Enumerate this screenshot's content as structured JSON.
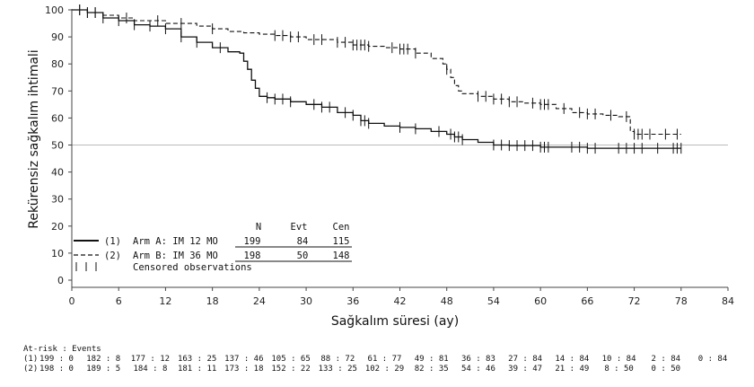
{
  "chart_data": {
    "type": "line",
    "subtype": "kaplan-meier",
    "xlabel": "Sağkalım süresi (ay)",
    "ylabel": "Rekürensiz sağkalım ihtimali",
    "xlim": [
      0,
      84
    ],
    "ylim": [
      0,
      100
    ],
    "xticks": [
      0,
      6,
      12,
      18,
      24,
      30,
      36,
      42,
      48,
      54,
      60,
      66,
      72,
      78,
      84
    ],
    "yticks": [
      0,
      10,
      20,
      30,
      40,
      50,
      60,
      70,
      80,
      90,
      100
    ],
    "reference_line_y": 50,
    "series": [
      {
        "name": "Arm A: IM 12 MO",
        "legend_id": "(1)",
        "style": "solid",
        "n": "199",
        "evt": "84",
        "cen": "115",
        "x": [
          0,
          2,
          4,
          6,
          8,
          10,
          12,
          14,
          16,
          18,
          20,
          21.5,
          22,
          22.5,
          23,
          23.5,
          24,
          25,
          26,
          28,
          30,
          32,
          34,
          36,
          37,
          38,
          40,
          42,
          44,
          46,
          48,
          49,
          50,
          52,
          54,
          56,
          60,
          66,
          72,
          78
        ],
        "y": [
          100,
          99,
          97,
          96,
          94.5,
          94,
          93,
          90,
          88,
          86,
          84.5,
          84,
          81,
          78,
          74,
          71,
          68,
          67.5,
          67,
          66,
          65,
          64,
          62,
          61,
          59,
          58,
          57,
          56.5,
          56,
          55,
          54,
          53,
          52,
          51,
          50,
          49.8,
          49.2,
          48.8,
          48.8,
          48.8
        ],
        "censor_x": [
          1,
          2,
          3,
          4,
          6,
          8,
          10,
          12,
          14,
          16,
          19,
          25,
          26,
          27,
          28,
          31,
          32,
          33,
          35,
          36,
          37,
          37.5,
          38,
          42,
          44,
          47,
          48.5,
          49,
          49.5,
          50,
          54,
          55,
          56,
          57,
          58,
          59,
          60,
          60.5,
          61,
          64,
          65,
          66,
          67,
          70,
          71,
          72,
          73,
          75,
          77,
          77.5,
          78
        ]
      },
      {
        "name": "Arm B: IM 36 MO",
        "legend_id": "(2)",
        "style": "dashed",
        "n": "198",
        "evt": "50",
        "cen": "148",
        "x": [
          0,
          2,
          4,
          6,
          8,
          10,
          12,
          14,
          16,
          18,
          20,
          22,
          24,
          26,
          28,
          30,
          34,
          36,
          38,
          40,
          42,
          44,
          46,
          47.5,
          48,
          48.5,
          49,
          49.5,
          50,
          52,
          54,
          56,
          58,
          60,
          62,
          64,
          66,
          68,
          70,
          71.5,
          72,
          74,
          78
        ],
        "y": [
          100,
          99,
          98,
          97,
          96,
          96,
          95,
          95,
          94,
          93,
          92,
          91.5,
          91,
          90.5,
          90,
          89,
          88,
          87,
          86.5,
          86,
          85.5,
          84,
          82,
          80,
          78,
          75,
          72,
          70,
          69,
          68,
          67,
          66,
          65.5,
          65,
          63.5,
          62,
          61.5,
          61,
          60.5,
          55,
          54,
          54,
          54
        ],
        "censor_x": [
          1,
          2,
          3,
          7,
          11,
          14,
          18,
          26,
          27,
          28,
          29,
          31,
          32,
          34,
          35,
          36,
          36.5,
          37,
          37.5,
          38,
          41,
          42,
          42.5,
          43,
          44,
          48,
          52,
          53,
          54,
          55,
          56,
          57,
          59,
          60,
          60.5,
          61,
          63,
          65,
          66,
          67,
          69,
          71,
          72,
          72.5,
          73,
          74,
          76,
          77.5
        ]
      }
    ],
    "legend": {
      "header": [
        "N",
        "Evt",
        "Cen"
      ],
      "censored_label": "Censored observations",
      "placement": "bottom-left"
    },
    "at_risk": {
      "title": "At-risk : Events",
      "rows": [
        {
          "id": "(1)",
          "values": [
            "199 : 0",
            "182 : 8",
            "177 : 12",
            "163 : 25",
            "137 : 46",
            "105 : 65",
            "88 : 72",
            "61 : 77",
            "49 : 81",
            "36 : 83",
            "27 : 84",
            "14 : 84",
            "10 : 84",
            "2 : 84",
            "0 : 84"
          ]
        },
        {
          "id": "(2)",
          "values": [
            "198 : 0",
            "189 : 5",
            "184 : 8",
            "181 : 11",
            "173 : 18",
            "152 : 22",
            "133 : 25",
            "102 : 29",
            "82 : 35",
            "54 : 46",
            "39 : 47",
            "21 : 49",
            "8 : 50",
            "0 : 50"
          ]
        }
      ]
    }
  }
}
